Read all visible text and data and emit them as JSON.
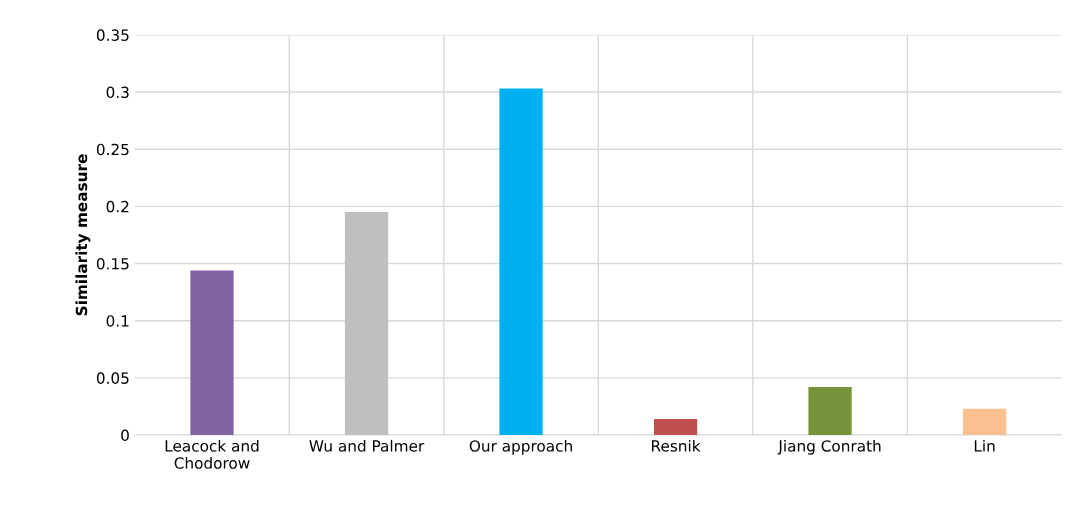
{
  "chart_data": {
    "type": "bar",
    "ylabel": "Similarity measure",
    "categories": [
      "Leacock and\nChodorow",
      "Wu and Palmer",
      "Our approach",
      "Resnik",
      "Jiang Conrath",
      "Lin"
    ],
    "values": [
      0.144,
      0.195,
      0.303,
      0.014,
      0.042,
      0.023
    ],
    "colors": [
      "#8064a2",
      "#bfbfbf",
      "#00b0f0",
      "#c0504d",
      "#77933c",
      "#fac090"
    ],
    "ylim": [
      0,
      0.35
    ],
    "yticks": [
      0,
      0.05,
      0.1,
      0.15,
      0.2,
      0.25,
      0.3,
      0.35
    ],
    "grid": true
  }
}
